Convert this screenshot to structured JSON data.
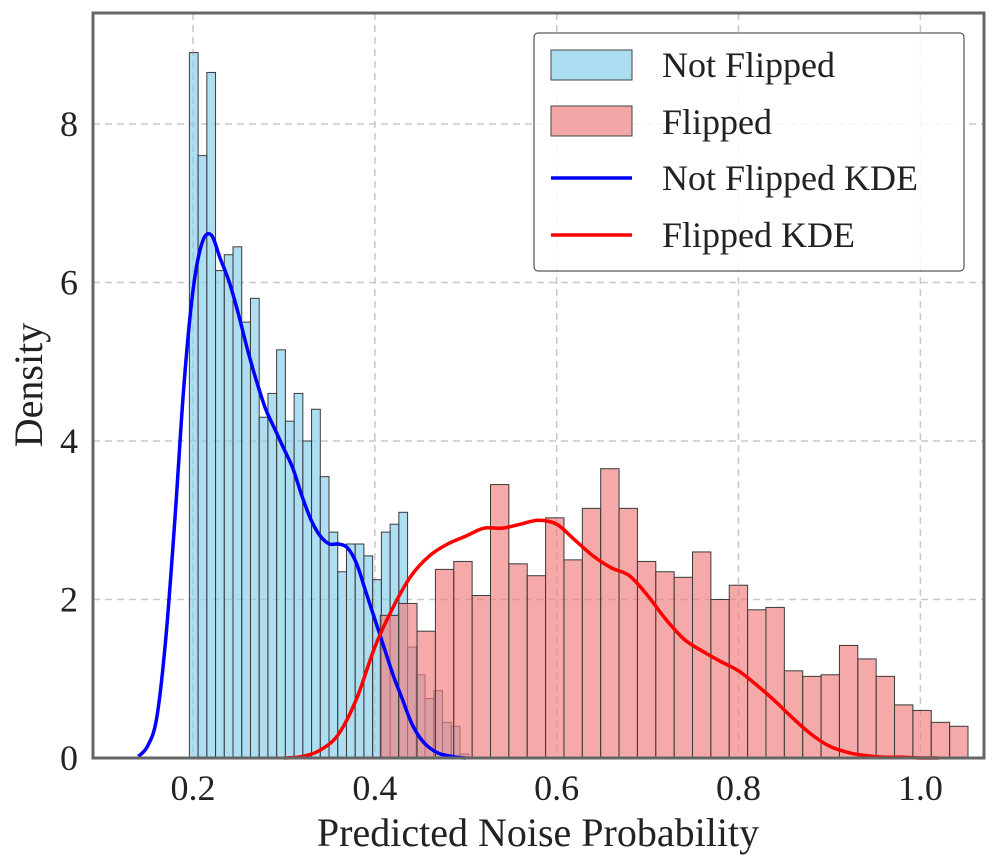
{
  "chart_data": {
    "type": "histogram",
    "title": "",
    "xlabel": "Predicted Noise Probability",
    "ylabel": "Density",
    "xlim": [
      0.09,
      1.07
    ],
    "ylim": [
      0,
      9.4
    ],
    "grid": true,
    "legend_position": "top-right",
    "xticks": [
      0.2,
      0.4,
      0.6,
      0.8,
      1.0
    ],
    "xtick_labels": [
      "0.2",
      "0.4",
      "0.6",
      "0.8",
      "1.0"
    ],
    "yticks": [
      0,
      2,
      4,
      6,
      8
    ],
    "ytick_labels": [
      "0",
      "2",
      "4",
      "6",
      "8"
    ],
    "series": [
      {
        "name": "Not Flipped",
        "kind": "histogram",
        "color": "#87CEEB",
        "bin_start": 0.196,
        "bin_width": 0.0096,
        "values": [
          8.9,
          7.6,
          8.65,
          6.15,
          6.35,
          6.45,
          5.5,
          5.8,
          4.3,
          4.6,
          5.15,
          4.25,
          4.6,
          4.0,
          4.4,
          3.55,
          2.85,
          2.35,
          2.7,
          2.7,
          2.55,
          2.25,
          2.85,
          2.95,
          3.1,
          1.4,
          1.05,
          0.75,
          0.85,
          0.45,
          0.4,
          0.05
        ]
      },
      {
        "name": "Flipped",
        "kind": "histogram",
        "color": "#F08080",
        "bin_start": 0.406,
        "bin_width": 0.0202,
        "values": [
          1.8,
          1.95,
          1.6,
          2.38,
          2.48,
          2.05,
          3.45,
          2.45,
          2.3,
          3.03,
          2.5,
          3.15,
          3.65,
          3.15,
          2.48,
          2.35,
          2.28,
          2.6,
          2.0,
          2.18,
          1.87,
          1.9,
          1.1,
          1.03,
          1.05,
          1.42,
          1.25,
          1.03,
          0.67,
          0.6,
          0.45,
          0.4
        ]
      },
      {
        "name": "Not Flipped KDE",
        "kind": "line",
        "color": "#0000FF",
        "x": [
          0.14,
          0.15,
          0.16,
          0.17,
          0.18,
          0.19,
          0.2,
          0.21,
          0.22,
          0.23,
          0.24,
          0.25,
          0.26,
          0.27,
          0.28,
          0.29,
          0.3,
          0.31,
          0.32,
          0.33,
          0.34,
          0.35,
          0.36,
          0.37,
          0.38,
          0.39,
          0.4,
          0.41,
          0.42,
          0.43,
          0.44,
          0.45,
          0.46,
          0.47,
          0.48,
          0.49,
          0.5
        ],
        "y": [
          0.02,
          0.15,
          0.5,
          1.5,
          3.0,
          4.7,
          5.9,
          6.5,
          6.6,
          6.3,
          6.0,
          5.6,
          5.15,
          4.75,
          4.4,
          4.15,
          3.9,
          3.65,
          3.3,
          3.0,
          2.8,
          2.7,
          2.7,
          2.65,
          2.45,
          2.1,
          1.75,
          1.4,
          1.05,
          0.75,
          0.45,
          0.25,
          0.13,
          0.06,
          0.03,
          0.01,
          0.0
        ]
      },
      {
        "name": "Flipped KDE",
        "kind": "line",
        "color": "#FF0000",
        "x": [
          0.3,
          0.32,
          0.34,
          0.36,
          0.38,
          0.4,
          0.42,
          0.44,
          0.46,
          0.48,
          0.5,
          0.52,
          0.54,
          0.56,
          0.58,
          0.6,
          0.62,
          0.64,
          0.66,
          0.68,
          0.7,
          0.72,
          0.74,
          0.76,
          0.78,
          0.8,
          0.82,
          0.84,
          0.86,
          0.88,
          0.9,
          0.92,
          0.94,
          0.96,
          0.98,
          1.0,
          1.02
        ],
        "y": [
          0.0,
          0.02,
          0.1,
          0.3,
          0.75,
          1.4,
          1.9,
          2.3,
          2.55,
          2.7,
          2.8,
          2.9,
          2.9,
          2.95,
          3.0,
          2.95,
          2.75,
          2.55,
          2.4,
          2.3,
          2.05,
          1.75,
          1.5,
          1.35,
          1.22,
          1.1,
          0.92,
          0.72,
          0.5,
          0.3,
          0.15,
          0.07,
          0.03,
          0.01,
          0.01,
          0.0,
          0.0
        ]
      }
    ]
  },
  "colors": {
    "not_flipped_fill": "#87CEEB",
    "flipped_fill": "#F08080",
    "not_flipped_kde": "#0000FF",
    "flipped_kde": "#FF0000",
    "frame": "#666666",
    "grid": "#c8c8c8"
  }
}
